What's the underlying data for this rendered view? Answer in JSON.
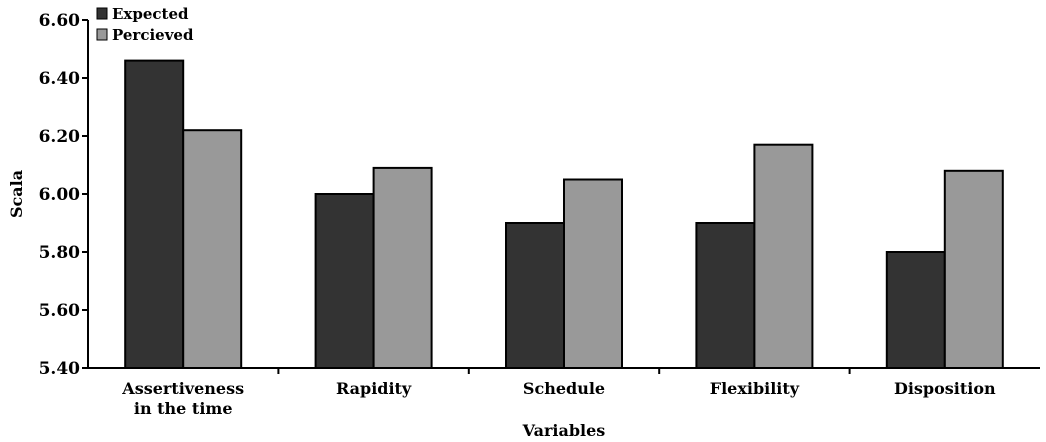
{
  "chart_data": {
    "type": "bar",
    "categories": [
      [
        "Assertiveness",
        "in the time"
      ],
      [
        "Rapidity"
      ],
      [
        "Schedule"
      ],
      [
        "Flexibility"
      ],
      [
        "Disposition"
      ]
    ],
    "series": [
      {
        "name": "Expected",
        "values": [
          6.46,
          6.0,
          5.9,
          5.9,
          5.8
        ],
        "color": "#333333"
      },
      {
        "name": "Percieved",
        "values": [
          6.22,
          6.09,
          6.05,
          6.17,
          6.08
        ],
        "color": "#999999"
      }
    ],
    "title": "",
    "xlabel": "Variables",
    "ylabel": "Scala",
    "ylim": [
      5.4,
      6.6
    ],
    "yticks": [
      "5.40",
      "5.60",
      "5.80",
      "6.00",
      "6.20",
      "6.40",
      "6.60"
    ],
    "grid": false,
    "legend_position": "top-left"
  }
}
